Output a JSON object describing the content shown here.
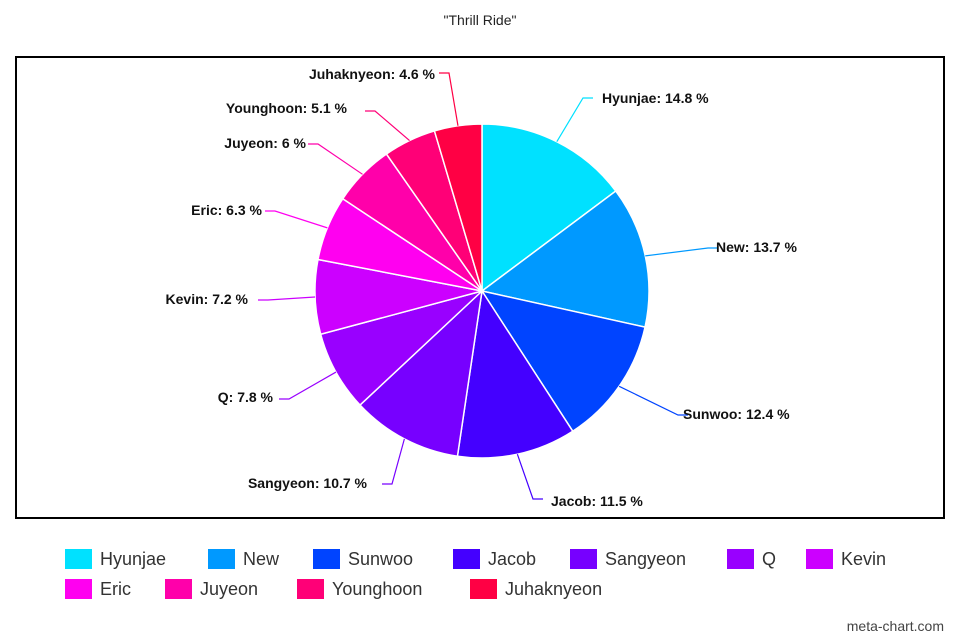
{
  "chart_data": {
    "type": "pie",
    "title": "\"Thrill Ride\"",
    "legend_position": "bottom",
    "slices": [
      {
        "label": "Hyunjae",
        "value": 14.8,
        "display": "Hyunjae: 14.8 %",
        "color": "#00e1ff"
      },
      {
        "label": "New",
        "value": 13.7,
        "display": "New: 13.7 %",
        "color": "#0099ff"
      },
      {
        "label": "Sunwoo",
        "value": 12.4,
        "display": "Sunwoo: 12.4 %",
        "color": "#0044ff"
      },
      {
        "label": "Jacob",
        "value": 11.5,
        "display": "Jacob: 11.5 %",
        "color": "#4400ff"
      },
      {
        "label": "Sangyeon",
        "value": 10.7,
        "display": "Sangyeon: 10.7 %",
        "color": "#7700ff"
      },
      {
        "label": "Q",
        "value": 7.8,
        "display": "Q: 7.8 %",
        "color": "#9900ff"
      },
      {
        "label": "Kevin",
        "value": 7.2,
        "display": "Kevin: 7.2 %",
        "color": "#cc00ff"
      },
      {
        "label": "Eric",
        "value": 6.3,
        "display": "Eric: 6.3 %",
        "color": "#ff00f0"
      },
      {
        "label": "Juyeon",
        "value": 6,
        "display": "Juyeon: 6 %",
        "color": "#ff00aa"
      },
      {
        "label": "Younghoon",
        "value": 5.1,
        "display": "Younghoon: 5.1 %",
        "color": "#ff0077"
      },
      {
        "label": "Juhaknyeon",
        "value": 4.6,
        "display": "Juhaknyeon: 4.6 %",
        "color": "#ff0044"
      }
    ]
  },
  "watermark": "meta-chart.com"
}
